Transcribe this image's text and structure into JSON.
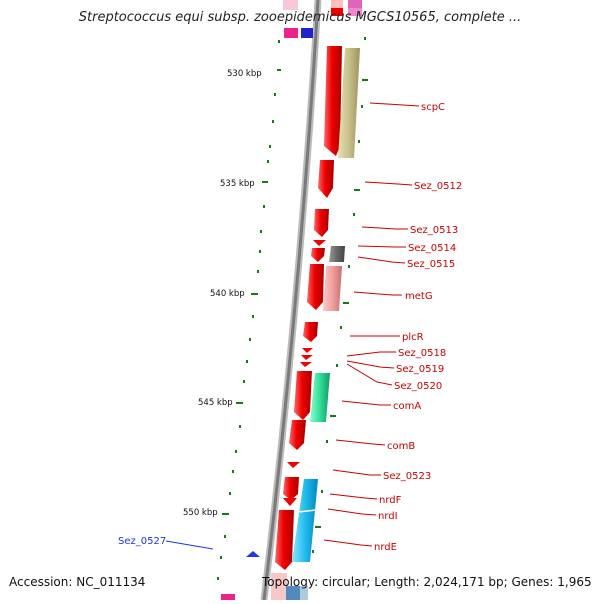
{
  "title": "Streptococcus equi subsp. zooepidemicus MGCS10565, complete ...",
  "footer": {
    "accession": "Accession: NC_011134",
    "summary": "Topology: circular; Length: 2,024,171 bp; Genes: 1,965"
  },
  "scale_labels": [
    "530 kbp",
    "535 kbp",
    "540 kbp",
    "545 kbp",
    "550 kbp"
  ],
  "gene_labels": [
    "scpC",
    "Sez_0512",
    "Sez_0513",
    "Sez_0514",
    "Sez_0515",
    "metG",
    "plcR",
    "Sez_0518",
    "Sez_0519",
    "Sez_0520",
    "comA",
    "comB",
    "Sez_0523",
    "nrdF",
    "nrdI",
    "nrdE",
    "Sez_0527"
  ],
  "colors": {
    "forward_gene": "#ee0000",
    "reverse_gene": "#2233ee",
    "label_text": "#cc0000",
    "backbone": "#8a8a8a",
    "tick": "#1a7a1a",
    "cog_olive": "#c8c08a",
    "cog_pink": "#f0a0a0",
    "cog_green": "#33dd99",
    "cog_blue": "#22bbee",
    "cog_gray": "#666666"
  }
}
